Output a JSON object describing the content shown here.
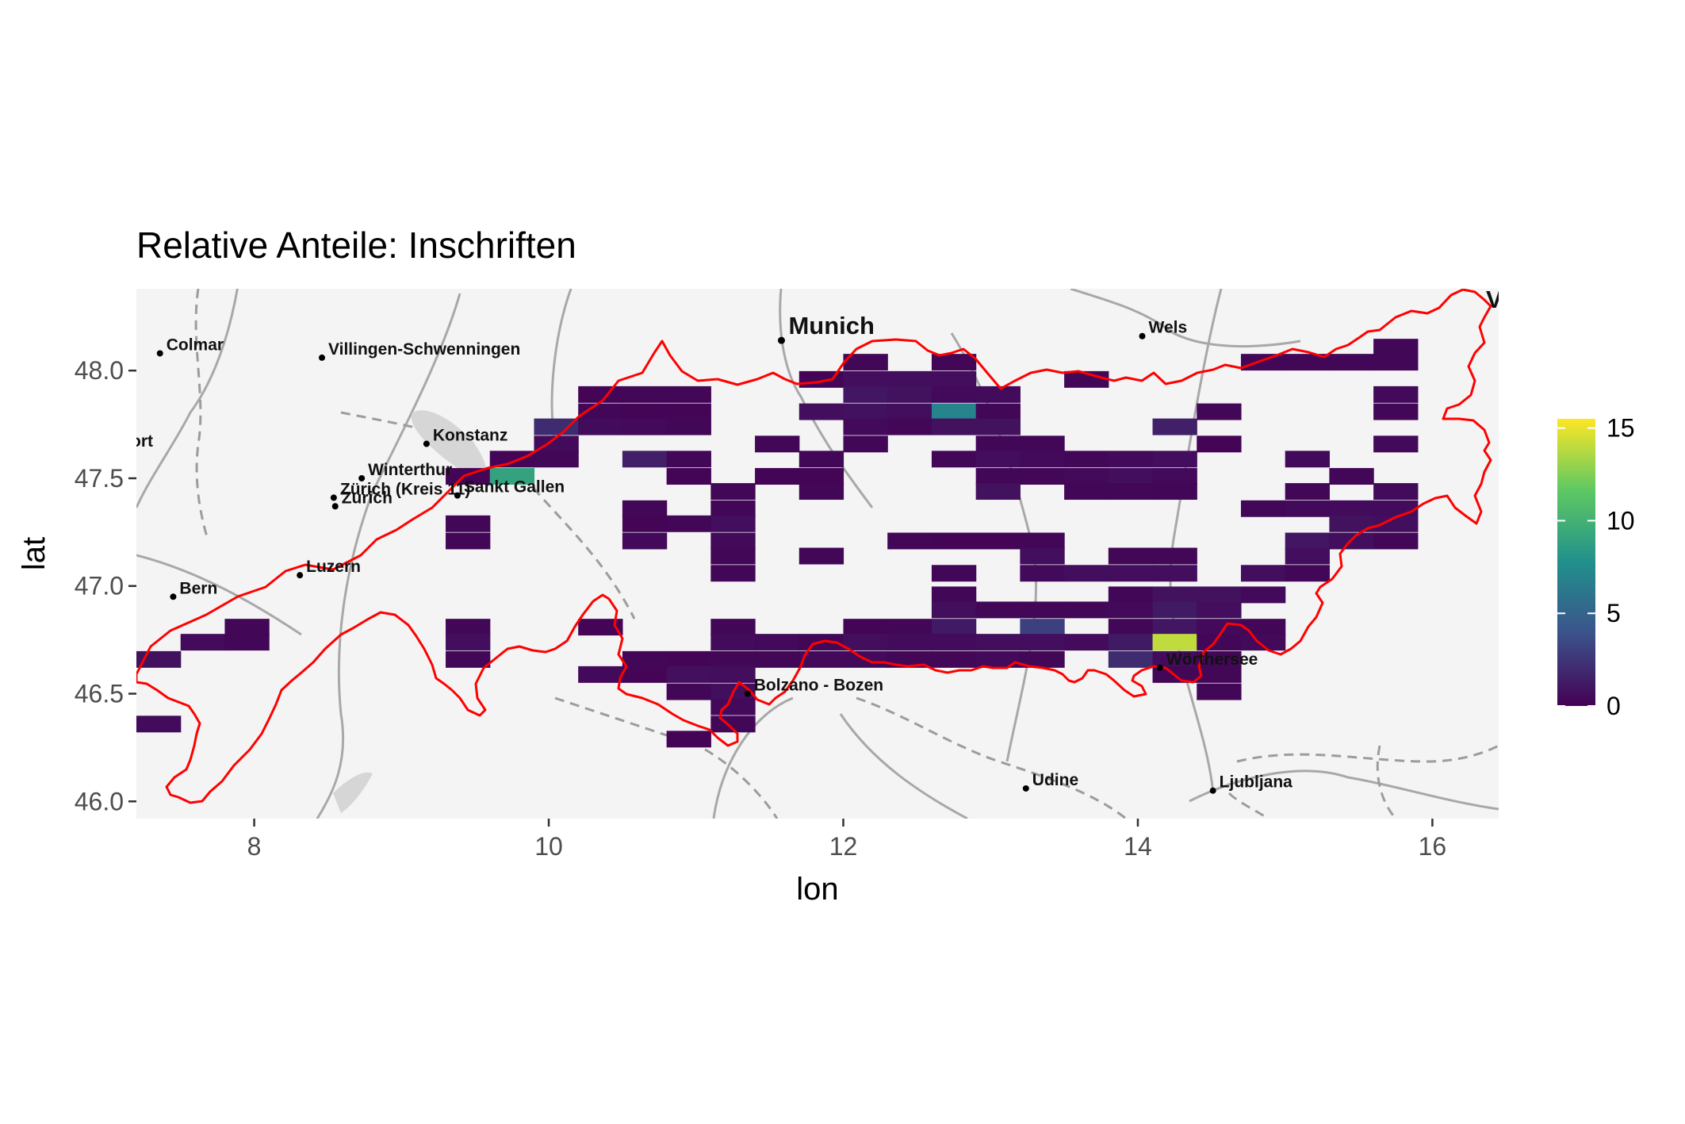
{
  "chart_data": {
    "type": "heatmap",
    "title": "Relative Anteile: Inschriften",
    "xlabel": "lon",
    "ylabel": "lat",
    "xlim": [
      7.2,
      16.45
    ],
    "ylim": [
      45.92,
      48.38
    ],
    "x_ticks": [
      8,
      10,
      12,
      14,
      16
    ],
    "y_ticks": [
      46.0,
      46.5,
      47.0,
      47.5,
      48.0
    ],
    "x_tick_labels": [
      "8",
      "10",
      "12",
      "14",
      "16"
    ],
    "y_tick_labels": [
      "46.0",
      "46.5",
      "47.0",
      "47.5",
      "48.0"
    ],
    "cell_size": {
      "dlon": 0.3,
      "dlat": 0.075
    },
    "legend": {
      "position": "right",
      "min": 0,
      "max": 15.5,
      "ticks": [
        0,
        5,
        10,
        15
      ],
      "tick_labels": [
        "0",
        "5",
        "10",
        "15"
      ],
      "colormap": [
        "#440154",
        "#3b528b",
        "#21908c",
        "#5dc863",
        "#fde725"
      ]
    },
    "basemap_labels": [
      {
        "name": "Colmar",
        "lon": 7.36,
        "lat": 48.08
      },
      {
        "name": "Villingen-Schwenningen",
        "lon": 8.46,
        "lat": 48.06
      },
      {
        "name": "Munich",
        "lon": 11.58,
        "lat": 48.14,
        "major": true
      },
      {
        "name": "Wels",
        "lon": 14.03,
        "lat": 48.16
      },
      {
        "name": "Konstanz",
        "lon": 9.17,
        "lat": 47.66
      },
      {
        "name": "Winterthur",
        "lon": 8.73,
        "lat": 47.5
      },
      {
        "name": "Zürich (Kreis 11)",
        "lon": 8.54,
        "lat": 47.41
      },
      {
        "name": "Zurich",
        "lon": 8.55,
        "lat": 47.37
      },
      {
        "name": "Sankt Gallen",
        "lon": 9.38,
        "lat": 47.42
      },
      {
        "name": "Luzern",
        "lon": 8.31,
        "lat": 47.05
      },
      {
        "name": "Bern",
        "lon": 7.45,
        "lat": 46.95
      },
      {
        "name": "Bolzano - Bozen",
        "lon": 11.35,
        "lat": 46.5
      },
      {
        "name": "Wörthersee",
        "lon": 14.15,
        "lat": 46.62
      },
      {
        "name": "Udine",
        "lon": 13.24,
        "lat": 46.06
      },
      {
        "name": "Ljubljana",
        "lon": 14.51,
        "lat": 46.05
      }
    ],
    "cells": [
      [
        7.35,
        46.36,
        0.5
      ],
      [
        7.35,
        46.66,
        0.8
      ],
      [
        7.65,
        46.74,
        0.5
      ],
      [
        7.95,
        46.74,
        0.3
      ],
      [
        7.95,
        46.81,
        0.3
      ],
      [
        9.45,
        47.51,
        0.2
      ],
      [
        9.45,
        47.29,
        0.3
      ],
      [
        9.45,
        47.21,
        0.3
      ],
      [
        9.45,
        46.81,
        0.3
      ],
      [
        9.45,
        46.74,
        0.6
      ],
      [
        9.45,
        46.66,
        0.3
      ],
      [
        9.75,
        47.59,
        0.2
      ],
      [
        9.75,
        47.51,
        9.0
      ],
      [
        10.05,
        47.74,
        2.0
      ],
      [
        10.05,
        47.66,
        0.5
      ],
      [
        10.05,
        47.59,
        0.3
      ],
      [
        10.35,
        47.89,
        0.2
      ],
      [
        10.35,
        47.81,
        0.3
      ],
      [
        10.35,
        47.74,
        0.5
      ],
      [
        10.35,
        46.81,
        0.2
      ],
      [
        10.35,
        46.59,
        0.4
      ],
      [
        10.65,
        47.89,
        0.3
      ],
      [
        10.65,
        47.81,
        0.2
      ],
      [
        10.65,
        47.74,
        0.4
      ],
      [
        10.65,
        47.59,
        1.5
      ],
      [
        10.65,
        47.36,
        0.3
      ],
      [
        10.65,
        47.29,
        0.2
      ],
      [
        10.65,
        47.21,
        0.4
      ],
      [
        10.65,
        46.66,
        0.3
      ],
      [
        10.65,
        46.59,
        0.2
      ],
      [
        10.95,
        47.89,
        0.3
      ],
      [
        10.95,
        47.81,
        0.2
      ],
      [
        10.95,
        47.74,
        0.3
      ],
      [
        10.95,
        47.59,
        0.3
      ],
      [
        10.95,
        47.51,
        0.2
      ],
      [
        10.95,
        47.29,
        0.3
      ],
      [
        10.95,
        46.66,
        0.2
      ],
      [
        10.95,
        46.59,
        0.7
      ],
      [
        10.95,
        46.51,
        0.3
      ],
      [
        10.95,
        46.29,
        0.2
      ],
      [
        11.25,
        47.44,
        0.3
      ],
      [
        11.25,
        47.36,
        0.3
      ],
      [
        11.25,
        47.29,
        0.6
      ],
      [
        11.25,
        47.21,
        0.4
      ],
      [
        11.25,
        47.14,
        0.3
      ],
      [
        11.25,
        47.06,
        0.3
      ],
      [
        11.25,
        46.81,
        0.3
      ],
      [
        11.25,
        46.74,
        0.5
      ],
      [
        11.25,
        46.66,
        0.3
      ],
      [
        11.25,
        46.59,
        0.6
      ],
      [
        11.25,
        46.51,
        0.6
      ],
      [
        11.25,
        46.44,
        0.4
      ],
      [
        11.25,
        46.36,
        0.3
      ],
      [
        11.55,
        47.66,
        0.3
      ],
      [
        11.55,
        47.51,
        0.2
      ],
      [
        11.55,
        46.74,
        0.4
      ],
      [
        11.55,
        46.66,
        0.3
      ],
      [
        11.85,
        47.96,
        0.2
      ],
      [
        11.85,
        47.81,
        0.6
      ],
      [
        11.85,
        47.59,
        0.3
      ],
      [
        11.85,
        47.51,
        0.2
      ],
      [
        11.85,
        47.44,
        0.3
      ],
      [
        11.85,
        47.14,
        0.3
      ],
      [
        11.85,
        46.74,
        0.3
      ],
      [
        11.85,
        46.66,
        0.4
      ],
      [
        12.15,
        48.04,
        0.3
      ],
      [
        12.15,
        47.96,
        0.6
      ],
      [
        12.15,
        47.89,
        1.0
      ],
      [
        12.15,
        47.81,
        0.8
      ],
      [
        12.15,
        47.74,
        0.4
      ],
      [
        12.15,
        47.66,
        0.3
      ],
      [
        12.15,
        46.81,
        0.2
      ],
      [
        12.15,
        46.74,
        0.6
      ],
      [
        12.15,
        46.66,
        0.4
      ],
      [
        12.45,
        47.96,
        0.6
      ],
      [
        12.45,
        47.89,
        0.8
      ],
      [
        12.45,
        47.81,
        0.6
      ],
      [
        12.45,
        47.74,
        0.3
      ],
      [
        12.45,
        47.21,
        0.3
      ],
      [
        12.45,
        46.81,
        0.3
      ],
      [
        12.45,
        46.74,
        0.5
      ],
      [
        12.45,
        46.66,
        0.3
      ],
      [
        12.75,
        48.04,
        0.3
      ],
      [
        12.75,
        47.96,
        0.6
      ],
      [
        12.75,
        47.89,
        0.4
      ],
      [
        12.75,
        47.81,
        7.0
      ],
      [
        12.75,
        47.74,
        0.8
      ],
      [
        12.75,
        47.59,
        0.3
      ],
      [
        12.75,
        47.21,
        0.2
      ],
      [
        12.75,
        47.06,
        0.3
      ],
      [
        12.75,
        46.96,
        0.3
      ],
      [
        12.75,
        46.89,
        0.6
      ],
      [
        12.75,
        46.81,
        1.2
      ],
      [
        12.75,
        46.74,
        0.5
      ],
      [
        12.75,
        46.66,
        0.3
      ],
      [
        13.05,
        47.89,
        0.5
      ],
      [
        13.05,
        47.81,
        0.3
      ],
      [
        13.05,
        47.74,
        0.8
      ],
      [
        13.05,
        47.66,
        0.3
      ],
      [
        13.05,
        47.59,
        0.6
      ],
      [
        13.05,
        47.51,
        0.3
      ],
      [
        13.05,
        47.44,
        0.8
      ],
      [
        13.05,
        47.21,
        0.2
      ],
      [
        13.05,
        46.89,
        0.3
      ],
      [
        13.05,
        46.74,
        0.6
      ],
      [
        13.05,
        46.66,
        0.4
      ],
      [
        13.35,
        47.66,
        0.3
      ],
      [
        13.35,
        47.59,
        0.4
      ],
      [
        13.35,
        47.51,
        0.3
      ],
      [
        13.35,
        47.21,
        0.3
      ],
      [
        13.35,
        47.14,
        0.6
      ],
      [
        13.35,
        47.06,
        0.4
      ],
      [
        13.35,
        46.89,
        0.3
      ],
      [
        13.35,
        46.81,
        3.0
      ],
      [
        13.35,
        46.74,
        0.6
      ],
      [
        13.35,
        46.66,
        0.3
      ],
      [
        13.65,
        47.96,
        0.3
      ],
      [
        13.65,
        47.59,
        0.3
      ],
      [
        13.65,
        47.51,
        0.4
      ],
      [
        13.65,
        47.44,
        0.3
      ],
      [
        13.65,
        47.06,
        0.6
      ],
      [
        13.65,
        46.89,
        0.3
      ],
      [
        13.65,
        46.74,
        0.5
      ],
      [
        13.95,
        47.59,
        0.4
      ],
      [
        13.95,
        47.51,
        0.6
      ],
      [
        13.95,
        47.44,
        0.3
      ],
      [
        13.95,
        47.14,
        0.3
      ],
      [
        13.95,
        47.06,
        0.6
      ],
      [
        13.95,
        46.96,
        0.3
      ],
      [
        13.95,
        46.89,
        0.4
      ],
      [
        13.95,
        46.81,
        0.3
      ],
      [
        13.95,
        46.74,
        1.2
      ],
      [
        13.95,
        46.66,
        2.0
      ],
      [
        14.25,
        47.74,
        1.5
      ],
      [
        14.25,
        47.59,
        0.6
      ],
      [
        14.25,
        47.51,
        0.4
      ],
      [
        14.25,
        47.44,
        0.3
      ],
      [
        14.25,
        47.14,
        0.3
      ],
      [
        14.25,
        47.06,
        0.6
      ],
      [
        14.25,
        46.96,
        0.8
      ],
      [
        14.25,
        46.89,
        1.2
      ],
      [
        14.25,
        46.81,
        1.0
      ],
      [
        14.25,
        46.74,
        14.0
      ],
      [
        14.25,
        46.66,
        0.5
      ],
      [
        14.25,
        46.59,
        0.3
      ],
      [
        14.55,
        47.81,
        0.3
      ],
      [
        14.55,
        47.66,
        0.2
      ],
      [
        14.55,
        46.96,
        0.8
      ],
      [
        14.55,
        46.89,
        0.6
      ],
      [
        14.55,
        46.81,
        0.4
      ],
      [
        14.55,
        46.74,
        0.3
      ],
      [
        14.55,
        46.66,
        0.3
      ],
      [
        14.55,
        46.59,
        0.3
      ],
      [
        14.55,
        46.51,
        0.3
      ],
      [
        14.85,
        48.04,
        0.3
      ],
      [
        14.85,
        47.36,
        0.3
      ],
      [
        14.85,
        47.06,
        0.6
      ],
      [
        14.85,
        46.96,
        0.4
      ],
      [
        14.85,
        46.81,
        0.3
      ],
      [
        14.85,
        46.74,
        0.4
      ],
      [
        15.15,
        48.04,
        0.3
      ],
      [
        15.15,
        47.59,
        0.4
      ],
      [
        15.15,
        47.44,
        0.3
      ],
      [
        15.15,
        47.36,
        0.4
      ],
      [
        15.15,
        47.21,
        1.0
      ],
      [
        15.15,
        47.14,
        0.6
      ],
      [
        15.15,
        47.06,
        0.3
      ],
      [
        15.45,
        48.04,
        0.3
      ],
      [
        15.45,
        47.51,
        0.3
      ],
      [
        15.45,
        47.36,
        0.5
      ],
      [
        15.45,
        47.29,
        0.8
      ],
      [
        15.45,
        47.21,
        0.6
      ],
      [
        15.75,
        48.11,
        0.3
      ],
      [
        15.75,
        48.04,
        0.3
      ],
      [
        15.75,
        47.89,
        0.4
      ],
      [
        15.75,
        47.81,
        0.3
      ],
      [
        15.75,
        47.66,
        0.4
      ],
      [
        15.75,
        47.44,
        0.5
      ],
      [
        15.75,
        47.36,
        0.5
      ],
      [
        15.75,
        47.29,
        0.6
      ],
      [
        15.75,
        47.21,
        0.3
      ]
    ]
  }
}
